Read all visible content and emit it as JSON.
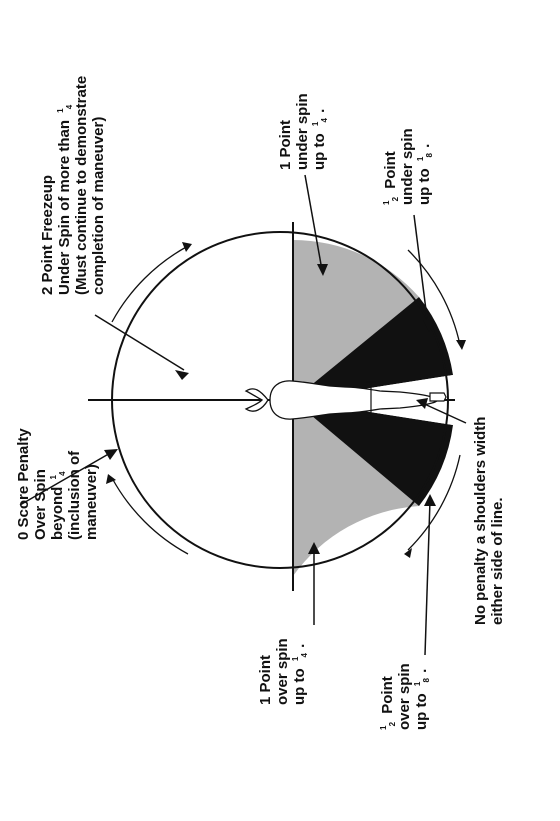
{
  "colors": {
    "line": "#111111",
    "gray_zone": "#b3b3b3",
    "black_zone": "#111111",
    "background": "#ffffff"
  },
  "labels": {
    "zero_score": {
      "line1": "0 Score Penalty",
      "line2": "Over Spin",
      "line3_text": "beyond",
      "line3_frac_num": "1",
      "line3_frac_den": "4",
      "line4": "(inclusion of",
      "line5": "maneuver)"
    },
    "two_point": {
      "line1": "2 Point Freezeup",
      "line2_text": "Under Spin of more than",
      "line2_frac_num": "1",
      "line2_frac_den": "4",
      "line3": "(Must continue to demonstrate",
      "line4": "completion of maneuver)"
    },
    "one_point_under": {
      "line1": "1 Point",
      "line2": "under spin",
      "line3_text": "up to",
      "frac_num": "1",
      "frac_den": "4",
      "tail": "."
    },
    "half_point_under": {
      "frac_num": "1",
      "frac_den": "2",
      "line1_text": "Point",
      "line2": "under spin",
      "line3_text": "up to",
      "frac2_num": "1",
      "frac2_den": "8",
      "tail": "."
    },
    "no_penalty": {
      "line1": "No penalty a shoulders width",
      "line2": "either side of line."
    },
    "one_point_over": {
      "line1": "1 Point",
      "line2": "over spin",
      "line3_text": "up to",
      "frac_num": "1",
      "frac_den": "4",
      "tail": "."
    },
    "half_point_over": {
      "frac_num": "1",
      "frac_den": "2",
      "line1_text": "Point",
      "line2": "over spin",
      "line3_text": "up to",
      "frac2_num": "1",
      "frac2_den": "8",
      "tail": "."
    }
  }
}
